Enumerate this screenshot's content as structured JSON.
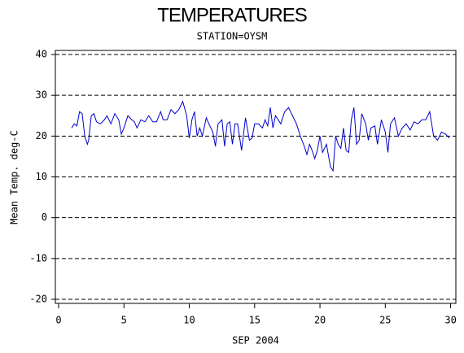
{
  "chart_data": {
    "type": "line",
    "title": "TEMPERATURES",
    "subtitle": "STATION=OYSM",
    "x_label": "SEP 2004",
    "y_label": "Mean Temp. deg-C",
    "color": "#0000cc",
    "grid": true,
    "xlim": [
      -0.25,
      30.4
    ],
    "xticks": [
      0,
      5,
      10,
      15,
      20,
      25,
      30
    ],
    "ylim": [
      -21,
      41
    ],
    "yticks": [
      -20,
      -10,
      0,
      10,
      20,
      30,
      40
    ],
    "x": [
      1.0,
      1.2,
      1.4,
      1.6,
      1.8,
      2.0,
      2.2,
      2.3,
      2.5,
      2.7,
      2.9,
      3.2,
      3.5,
      3.7,
      4.0,
      4.3,
      4.6,
      4.8,
      5.0,
      5.3,
      5.6,
      5.8,
      6.0,
      6.3,
      6.6,
      6.9,
      7.2,
      7.5,
      7.8,
      8.0,
      8.3,
      8.6,
      8.9,
      9.2,
      9.5,
      9.8,
      10.0,
      10.2,
      10.4,
      10.6,
      10.8,
      11.0,
      11.3,
      11.5,
      11.8,
      12.0,
      12.2,
      12.5,
      12.7,
      12.9,
      13.1,
      13.3,
      13.5,
      13.7,
      14.0,
      14.3,
      14.6,
      14.8,
      15.0,
      15.3,
      15.6,
      15.8,
      16.0,
      16.2,
      16.4,
      16.6,
      16.8,
      17.0,
      17.3,
      17.6,
      17.9,
      18.2,
      18.5,
      18.8,
      19.0,
      19.2,
      19.4,
      19.6,
      19.8,
      20.0,
      20.2,
      20.5,
      20.8,
      21.0,
      21.2,
      21.4,
      21.6,
      21.8,
      22.0,
      22.2,
      22.4,
      22.6,
      22.8,
      23.0,
      23.2,
      23.5,
      23.7,
      23.9,
      24.2,
      24.4,
      24.7,
      25.0,
      25.2,
      25.4,
      25.7,
      26.0,
      26.3,
      26.6,
      26.9,
      27.2,
      27.5,
      27.8,
      28.1,
      28.4,
      28.7,
      29.0,
      29.3,
      29.6,
      29.9
    ],
    "values": [
      22,
      23,
      22.5,
      26,
      25.5,
      20,
      18,
      19,
      25,
      25.5,
      23.5,
      23,
      24,
      25,
      23,
      25.5,
      24,
      20.5,
      22,
      25,
      24,
      23.5,
      22,
      24,
      23.5,
      25,
      23.5,
      23.5,
      26,
      24,
      24,
      26.5,
      25.5,
      26.5,
      28.5,
      25,
      19.5,
      24,
      26,
      20,
      22,
      20,
      24.5,
      23,
      21,
      17.5,
      23,
      24,
      17.5,
      23,
      23.5,
      18,
      23,
      23,
      16.5,
      24.5,
      19,
      19.5,
      23,
      23,
      22,
      24,
      22.5,
      27,
      22,
      25,
      24,
      23,
      26,
      27,
      25,
      23,
      20,
      17.5,
      15.5,
      18,
      16.5,
      14.5,
      16.5,
      20,
      16,
      18,
      12.5,
      11.5,
      20,
      18,
      17,
      22,
      16.5,
      16,
      24,
      27,
      18,
      19,
      25.5,
      23,
      19,
      22,
      22.5,
      18,
      24,
      21,
      16,
      23,
      24.5,
      20,
      22,
      23,
      21.5,
      23.5,
      23,
      24,
      24,
      26,
      20,
      19,
      21,
      20.5,
      19.5
    ]
  }
}
